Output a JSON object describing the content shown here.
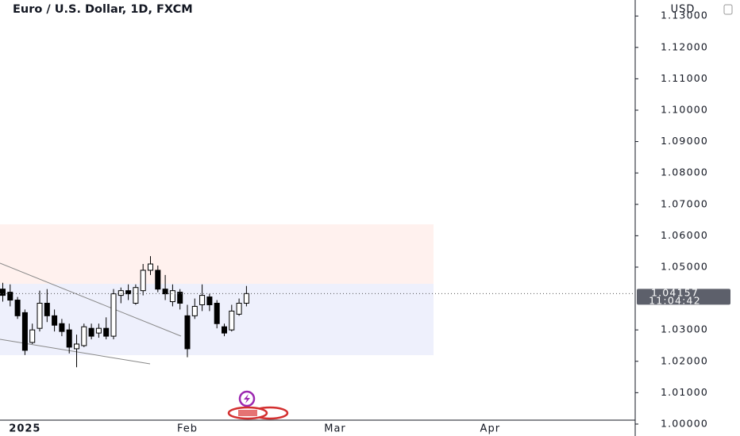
{
  "chart_data": {
    "type": "candlestick",
    "title": "Euro / U.S. Dollar, 1D, FXCM",
    "currency": "USD",
    "last_price": 1.04157,
    "countdown": "11:04:42",
    "categories": [
      null,
      null,
      null,
      "2025",
      null,
      null,
      null,
      null,
      null,
      null,
      null,
      null,
      null,
      null,
      null,
      null,
      null,
      null,
      null,
      null,
      null,
      null,
      null,
      null,
      null,
      "Feb",
      null,
      null,
      null,
      null,
      null,
      null,
      null,
      null,
      null,
      null,
      null,
      null,
      null,
      null,
      null,
      null,
      null,
      null,
      null,
      "Mar",
      null,
      null,
      null,
      null,
      null,
      null,
      null,
      null,
      null,
      null,
      null,
      null,
      null,
      null,
      null,
      null,
      null,
      null,
      null,
      null,
      "Apr",
      null,
      null,
      null,
      null
    ],
    "open": [
      1.043,
      1.042,
      1.0395,
      1.0355,
      1.026,
      1.0305,
      1.0385,
      1.0345,
      1.032,
      1.03,
      1.024,
      1.025,
      1.0305,
      1.029,
      1.0305,
      1.028,
      1.041,
      1.0425,
      1.0385,
      1.0425,
      1.049,
      1.049,
      1.043,
      1.039,
      1.042,
      1.0345,
      1.0345,
      1.038,
      1.0405,
      1.0385,
      1.031,
      1.03,
      1.035,
      1.0385,
      null,
      null,
      null,
      null,
      null,
      null,
      null,
      null,
      null,
      null,
      null,
      null,
      null,
      null,
      null,
      null,
      null,
      null,
      null,
      null,
      null,
      null,
      null,
      null,
      null,
      null,
      null,
      null,
      null,
      null,
      null,
      null,
      null,
      null,
      null,
      null,
      null
    ],
    "high": [
      1.045,
      1.0445,
      1.0405,
      1.0365,
      1.032,
      1.0425,
      1.043,
      1.0365,
      1.0335,
      1.032,
      1.0285,
      1.032,
      1.032,
      1.032,
      1.034,
      1.043,
      1.0435,
      1.0445,
      1.0445,
      1.051,
      1.0535,
      1.0505,
      1.0475,
      1.0445,
      1.043,
      1.038,
      1.04,
      1.0445,
      1.0415,
      1.0395,
      1.032,
      1.038,
      1.04,
      1.044,
      null,
      null,
      null,
      null,
      null,
      null,
      null,
      null,
      null,
      null,
      null,
      null,
      null,
      null,
      null,
      null,
      null,
      null,
      null,
      null,
      null,
      null,
      null,
      null,
      null,
      null,
      null,
      null,
      null,
      null,
      null,
      null,
      null,
      null,
      null,
      null,
      null
    ],
    "low": [
      1.039,
      1.0375,
      1.0335,
      1.022,
      1.0255,
      1.0295,
      1.0325,
      1.0295,
      1.028,
      1.0225,
      1.0181,
      1.0245,
      1.027,
      1.0275,
      1.027,
      1.027,
      1.0385,
      1.0395,
      1.038,
      1.041,
      1.0475,
      1.042,
      1.0395,
      1.0375,
      1.0365,
      1.0213,
      1.0335,
      1.036,
      1.036,
      1.0305,
      1.028,
      1.0295,
      1.0345,
      1.0375,
      null,
      null,
      null,
      null,
      null,
      null,
      null,
      null,
      null,
      null,
      null,
      null,
      null,
      null,
      null,
      null,
      null,
      null,
      null,
      null,
      null,
      null,
      null,
      null,
      null,
      null,
      null,
      null,
      null,
      null,
      null,
      null,
      null,
      null,
      null,
      null,
      null
    ],
    "close": [
      1.041,
      1.0395,
      1.0345,
      1.0235,
      1.03,
      1.0385,
      1.0345,
      1.0315,
      1.0295,
      1.0245,
      1.0255,
      1.031,
      1.028,
      1.0305,
      1.028,
      1.0415,
      1.0425,
      1.0415,
      1.0435,
      1.049,
      1.051,
      1.043,
      1.0415,
      1.0425,
      1.0385,
      1.024,
      1.0375,
      1.041,
      1.038,
      1.032,
      1.029,
      1.036,
      1.0385,
      1.04157,
      null,
      null,
      null,
      null,
      null,
      null,
      null,
      null,
      null,
      null,
      null,
      null,
      null,
      null,
      null,
      null,
      null,
      null,
      null,
      null,
      null,
      null,
      null,
      null,
      null,
      null,
      null,
      null,
      null,
      null,
      null,
      null,
      null,
      null,
      null,
      null,
      null
    ],
    "ylim": [
      0.9962,
      1.1351
    ],
    "yticks": [
      {
        "value": 1.13,
        "label": "1.13000"
      },
      {
        "value": 1.12,
        "label": "1.12000"
      },
      {
        "value": 1.11,
        "label": "1.11000"
      },
      {
        "value": 1.1,
        "label": "1.10000"
      },
      {
        "value": 1.09,
        "label": "1.09000"
      },
      {
        "value": 1.08,
        "label": "1.08000"
      },
      {
        "value": 1.07,
        "label": "1.07000"
      },
      {
        "value": 1.06,
        "label": "1.06000"
      },
      {
        "value": 1.05,
        "label": "1.05000"
      },
      {
        "value": 1.03,
        "label": "1.03000"
      },
      {
        "value": 1.02,
        "label": "1.02000"
      },
      {
        "value": 1.01,
        "label": "1.01000"
      },
      {
        "value": 1.0,
        "label": "1.00000"
      }
    ],
    "up_color": "#ffffff",
    "down_color": "#000000"
  }
}
